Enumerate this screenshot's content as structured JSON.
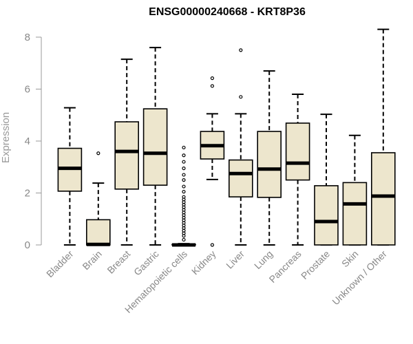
{
  "chart_data": {
    "type": "boxplot",
    "title": "ENSG00000240668 - KRT8P36",
    "xlabel": "",
    "ylabel": "Expression",
    "ylim": [
      0,
      8.5
    ],
    "yticks": [
      0,
      2,
      4,
      6,
      8
    ],
    "categories": [
      "Bladder",
      "Brain",
      "Breast",
      "Gastric",
      "Hematopoietic cells",
      "Kidney",
      "Liver",
      "Lung",
      "Pancreas",
      "Prostate",
      "Skin",
      "Unknown / Other"
    ],
    "boxes": [
      {
        "min": 0.0,
        "q1": 2.07,
        "median": 2.95,
        "q3": 3.72,
        "max": 5.28,
        "outliers": []
      },
      {
        "min": 0.0,
        "q1": 0.0,
        "median": 0.02,
        "q3": 0.97,
        "max": 2.38,
        "outliers": [
          3.53
        ]
      },
      {
        "min": 0.0,
        "q1": 2.15,
        "median": 3.6,
        "q3": 4.74,
        "max": 7.15,
        "outliers": []
      },
      {
        "min": 0.0,
        "q1": 2.3,
        "median": 3.53,
        "q3": 5.24,
        "max": 7.6,
        "outliers": []
      },
      {
        "min": 0.0,
        "q1": 0.0,
        "median": 0.0,
        "q3": 0.02,
        "max": 0.05,
        "outliers": [
          0.2,
          0.35,
          0.45,
          0.55,
          0.65,
          0.75,
          0.85,
          0.95,
          1.05,
          1.15,
          1.25,
          1.35,
          1.45,
          1.55,
          1.65,
          1.75,
          1.85,
          2.05,
          2.25,
          2.5,
          2.7,
          2.95,
          3.2,
          3.45,
          3.75
        ]
      },
      {
        "min": 2.52,
        "q1": 3.31,
        "median": 3.82,
        "q3": 4.37,
        "max": 5.05,
        "outliers": [
          0.0,
          6.12,
          6.42
        ]
      },
      {
        "min": 0.0,
        "q1": 1.85,
        "median": 2.75,
        "q3": 3.27,
        "max": 5.05,
        "outliers": [
          5.7,
          7.5
        ]
      },
      {
        "min": 0.0,
        "q1": 1.83,
        "median": 2.92,
        "q3": 4.37,
        "max": 6.7,
        "outliers": []
      },
      {
        "min": 0.0,
        "q1": 2.5,
        "median": 3.15,
        "q3": 4.69,
        "max": 5.8,
        "outliers": []
      },
      {
        "min": 0.0,
        "q1": 0.0,
        "median": 0.9,
        "q3": 2.28,
        "max": 5.03,
        "outliers": []
      },
      {
        "min": 0.0,
        "q1": 0.0,
        "median": 1.58,
        "q3": 2.4,
        "max": 4.22,
        "outliers": []
      },
      {
        "min": 0.0,
        "q1": 0.0,
        "median": 1.88,
        "q3": 3.55,
        "max": 8.3,
        "outliers": []
      }
    ],
    "box_fill": "#ede6cd",
    "box_stroke": "#000000",
    "axis_color": "#999999",
    "grid": false,
    "legend": "none"
  }
}
